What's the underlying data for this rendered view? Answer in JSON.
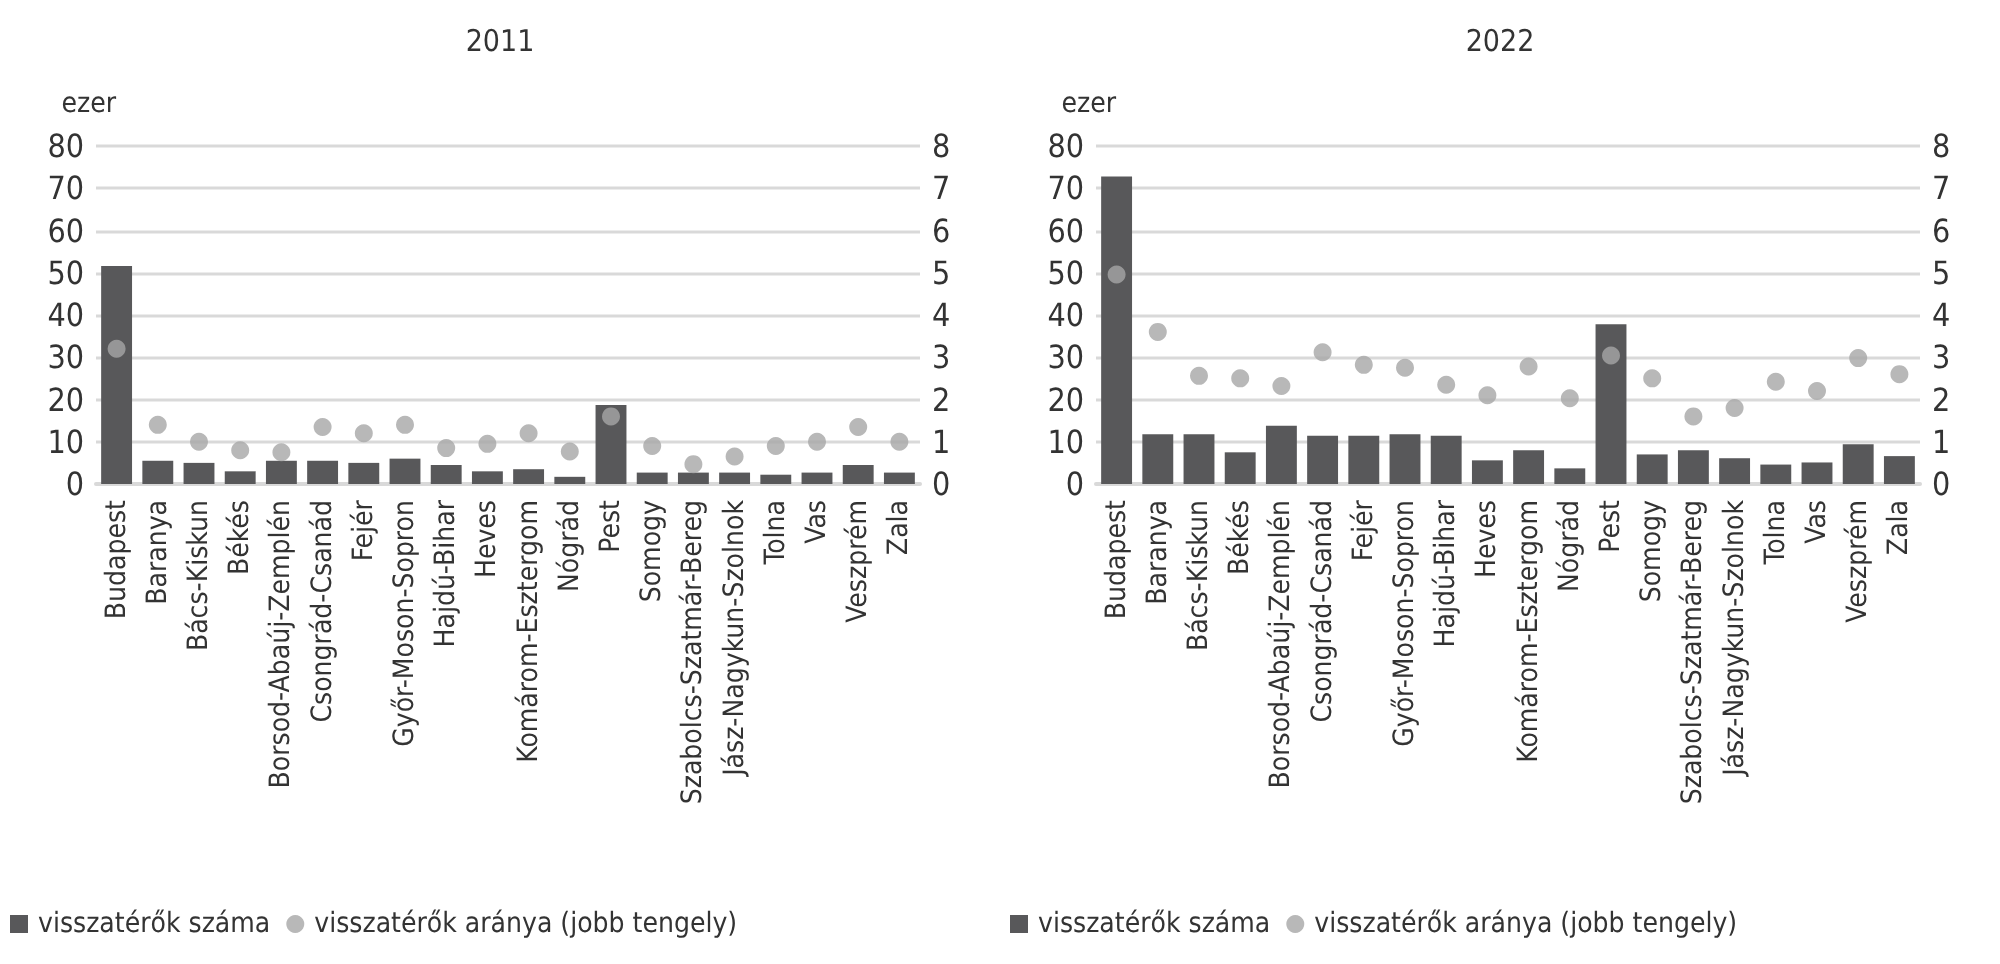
{
  "chart_data": [
    {
      "type": "bar",
      "title": "2011",
      "ylabel": "ezer",
      "categories": [
        "Budapest",
        "Baranya",
        "Bács-Kiskun",
        "Békés",
        "Borsod-Abaúj-Zemplén",
        "Csongrád-Csanád",
        "Fejér",
        "Győr-Moson-Sopron",
        "Hajdú-Bihar",
        "Heves",
        "Komárom-Esztergom",
        "Nógrád",
        "Pest",
        "Somogy",
        "Szabolcs-Szatmár-Bereg",
        "Jász-Nagykun-Szolnok",
        "Tolna",
        "Vas",
        "Veszprém",
        "Zala"
      ],
      "series": [
        {
          "name": "visszatérők száma",
          "color": "#58585a",
          "values": [
            51.6,
            5.5,
            5,
            3,
            5.5,
            5.5,
            5,
            6,
            4.5,
            3,
            3.5,
            1.7,
            18.7,
            2.7,
            2.7,
            2.7,
            2.2,
            2.7,
            4.5,
            2.7
          ]
        },
        {
          "name": "visszatérők aránya (jobb tengely)",
          "type": "scatter",
          "axis": "y2",
          "color": "#a6a6a6",
          "values": [
            3.2,
            1.4,
            1.0,
            0.8,
            0.75,
            1.35,
            1.2,
            1.4,
            0.85,
            0.95,
            1.2,
            0.77,
            1.6,
            0.9,
            0.47,
            0.65,
            0.9,
            1.0,
            1.35,
            1.0
          ]
        }
      ],
      "ylim": [
        0,
        80
      ],
      "yticks": [
        0,
        10,
        20,
        30,
        40,
        50,
        60,
        70,
        80
      ],
      "y2lim": [
        0,
        8
      ],
      "y2ticks": [
        0,
        1,
        2,
        3,
        4,
        5,
        6,
        7,
        8
      ],
      "grid": "y",
      "legend": "bottom left",
      "marker": "circle"
    },
    {
      "type": "bar",
      "title": "2022",
      "ylabel": "ezer",
      "categories": [
        "Budapest",
        "Baranya",
        "Bács-Kiskun",
        "Békés",
        "Borsod-Abaúj-Zemplén",
        "Csongrád-Csanád",
        "Fejér",
        "Győr-Moson-Sopron",
        "Hajdú-Bihar",
        "Heves",
        "Komárom-Esztergom",
        "Nógrád",
        "Pest",
        "Somogy",
        "Szabolcs-Szatmár-Bereg",
        "Jász-Nagykun-Szolnok",
        "Tolna",
        "Vas",
        "Veszprém",
        "Zala"
      ],
      "series": [
        {
          "name": "visszatérők száma",
          "color": "#58585a",
          "values": [
            72.8,
            11.8,
            11.8,
            7.5,
            13.8,
            11.4,
            11.4,
            11.8,
            11.4,
            5.6,
            8,
            3.7,
            37.8,
            7,
            8,
            6.1,
            4.6,
            5.1,
            9.4,
            6.6
          ]
        },
        {
          "name": "visszatérők aránya (jobb tengely)",
          "type": "scatter",
          "axis": "y2",
          "color": "#a6a6a6",
          "values": [
            4.96,
            3.6,
            2.56,
            2.5,
            2.32,
            3.12,
            2.82,
            2.75,
            2.35,
            2.1,
            2.78,
            2.03,
            3.04,
            2.5,
            1.6,
            1.8,
            2.42,
            2.2,
            2.98,
            2.6
          ]
        }
      ],
      "ylim": [
        0,
        80
      ],
      "yticks": [
        0,
        10,
        20,
        30,
        40,
        50,
        60,
        70,
        80
      ],
      "y2lim": [
        0,
        8
      ],
      "y2ticks": [
        0,
        1,
        2,
        3,
        4,
        5,
        6,
        7,
        8
      ],
      "grid": "y",
      "legend": "bottom left",
      "marker": "circle"
    }
  ]
}
